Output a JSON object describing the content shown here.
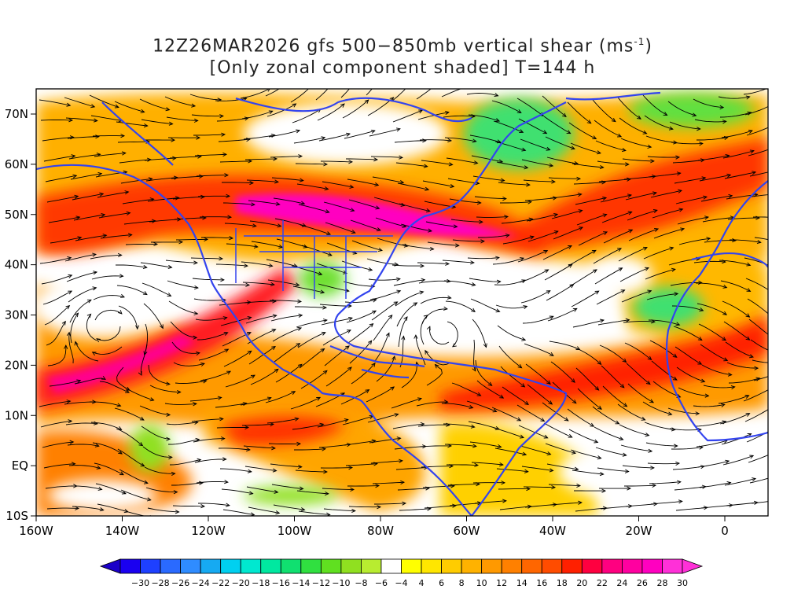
{
  "title": {
    "line1_prefix": "12Z26MAR2026 gfs 500−850mb vertical shear (ms",
    "line1_sup": "-1",
    "line1_suffix": ")",
    "line2": "[Only zonal component shaded] T=144 h"
  },
  "axes": {
    "x_ticks": [
      "160W",
      "140W",
      "120W",
      "100W",
      "80W",
      "60W",
      "40W",
      "20W",
      "0"
    ],
    "y_ticks": [
      "70N",
      "60N",
      "50N",
      "40N",
      "30N",
      "20N",
      "10N",
      "EQ",
      "10S"
    ]
  },
  "colorbar": {
    "labels": [
      "−30",
      "−28",
      "−26",
      "−24",
      "−22",
      "−20",
      "−18",
      "−16",
      "−14",
      "−12",
      "−10",
      "−8",
      "−6",
      "−4",
      "4",
      "6",
      "8",
      "10",
      "12",
      "14",
      "16",
      "18",
      "20",
      "22",
      "24",
      "26",
      "28",
      "30"
    ],
    "colors": [
      "#1a00f0",
      "#1e40ff",
      "#2a6aff",
      "#2f8cff",
      "#16aaf2",
      "#00d0f0",
      "#00e8d0",
      "#00e8a0",
      "#10e070",
      "#30e040",
      "#60e020",
      "#90e020",
      "#b8ec30",
      "#ffffff",
      "#ffff00",
      "#ffe600",
      "#ffcc00",
      "#ffb200",
      "#ff9900",
      "#ff8000",
      "#ff6600",
      "#ff4c00",
      "#ff2000",
      "#ff0040",
      "#ff0080",
      "#ff00a0",
      "#ff00c0",
      "#ff30d8"
    ]
  },
  "colors": {
    "coastline": "#3344ee",
    "streamline": "#000000"
  }
}
